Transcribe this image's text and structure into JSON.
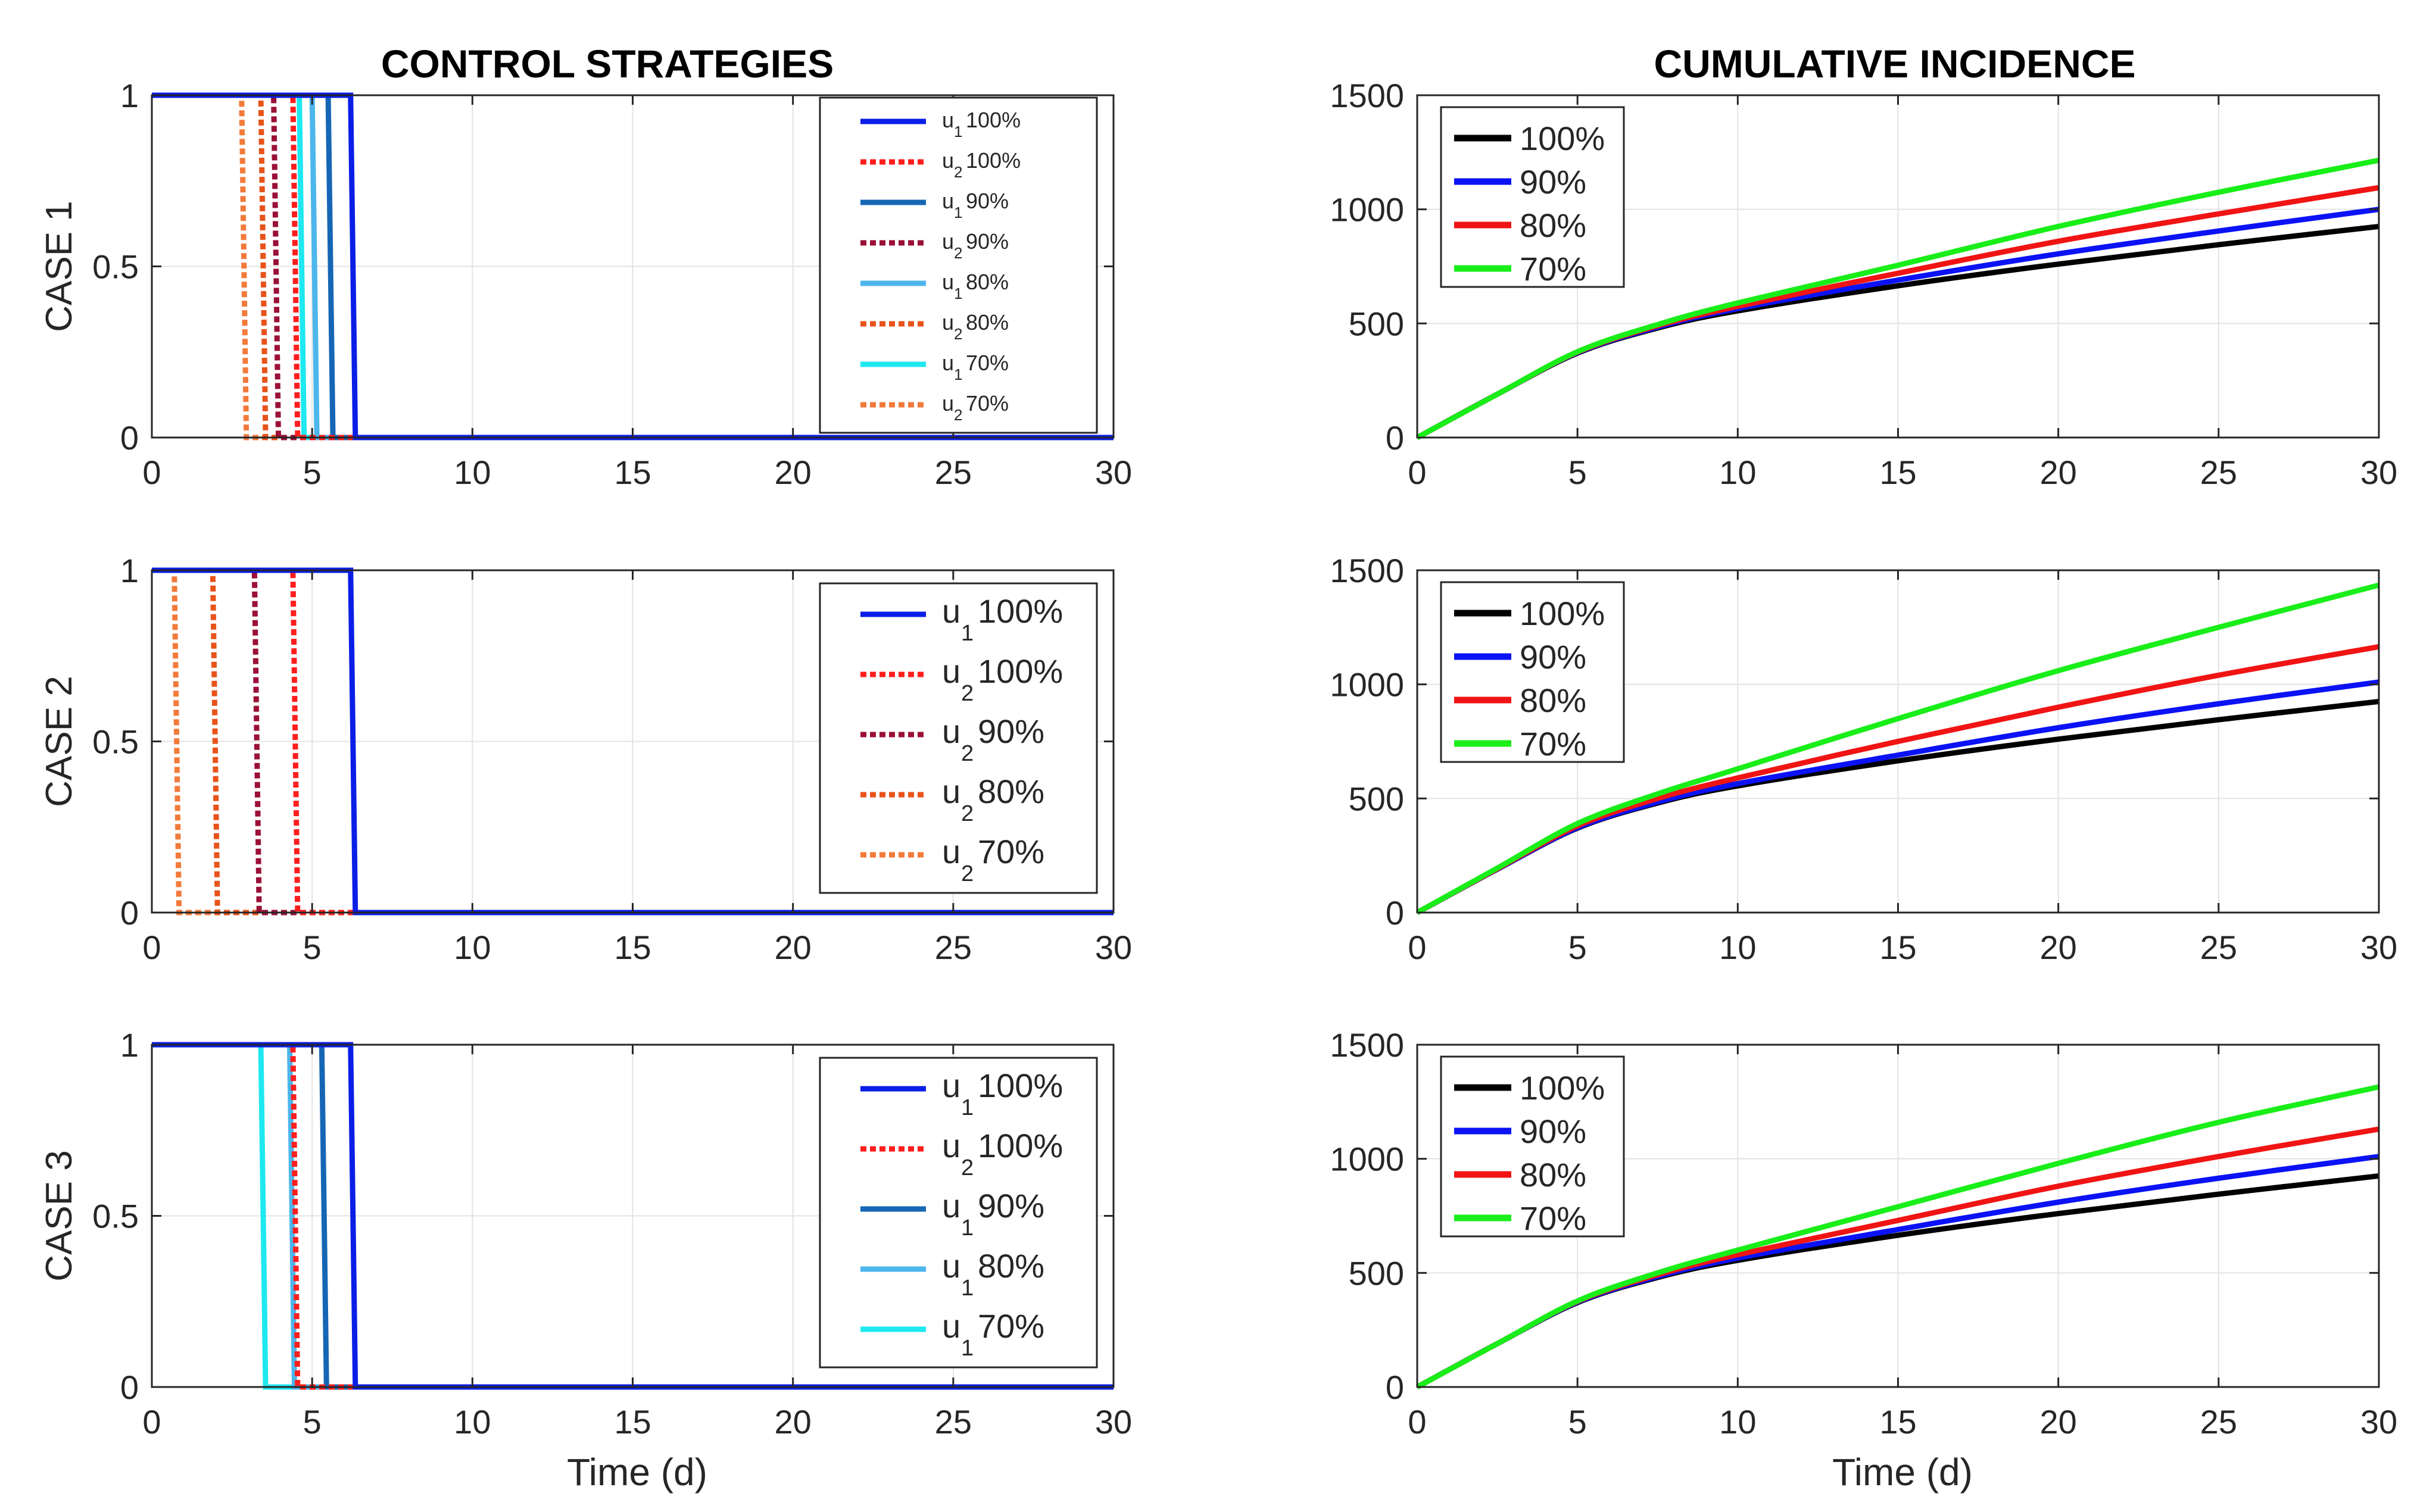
{
  "figure": {
    "left_title": "CONTROL STRATEGIES",
    "right_title": "CUMULATIVE INCIDENCE",
    "xlabel": "Time (d)"
  },
  "chart_data": [
    {
      "type": "line",
      "title": "",
      "ylabel": "CASE 1",
      "xlim": [
        0,
        30
      ],
      "ylim": [
        0,
        1
      ],
      "xticks": [
        0,
        5,
        10,
        15,
        20,
        25,
        30
      ],
      "yticks": [
        0,
        0.5,
        1
      ],
      "grid": true,
      "legend_size": "small",
      "series": [
        {
          "sym": "u",
          "sub": "1",
          "pct": "100%",
          "color": "#0a1ee6",
          "dash": false,
          "switch": 6.2
        },
        {
          "sym": "u",
          "sub": "2",
          "pct": "100%",
          "color": "#ff1e1e",
          "dash": true,
          "switch": 4.4
        },
        {
          "sym": "u",
          "sub": "1",
          "pct": "90%",
          "color": "#1666b5",
          "dash": false,
          "switch": 5.5
        },
        {
          "sym": "u",
          "sub": "2",
          "pct": "90%",
          "color": "#9a1036",
          "dash": true,
          "switch": 3.8
        },
        {
          "sym": "u",
          "sub": "1",
          "pct": "80%",
          "color": "#4db6ec",
          "dash": false,
          "switch": 5.0
        },
        {
          "sym": "u",
          "sub": "2",
          "pct": "80%",
          "color": "#e8531a",
          "dash": true,
          "switch": 3.4
        },
        {
          "sym": "u",
          "sub": "1",
          "pct": "70%",
          "color": "#1ee8f0",
          "dash": false,
          "switch": 4.6
        },
        {
          "sym": "u",
          "sub": "2",
          "pct": "70%",
          "color": "#f27a3a",
          "dash": true,
          "switch": 2.8
        }
      ]
    },
    {
      "type": "line",
      "title": "",
      "ylabel": "",
      "xlim": [
        0,
        30
      ],
      "ylim": [
        0,
        1500
      ],
      "xticks": [
        0,
        5,
        10,
        15,
        20,
        25,
        30
      ],
      "yticks": [
        0,
        500,
        1000,
        1500
      ],
      "grid": true,
      "series": [
        {
          "name": "100%",
          "color": "#000000",
          "x": [
            0,
            2.5,
            5,
            7.5,
            10,
            15,
            20,
            25,
            30
          ],
          "y": [
            0,
            190,
            370,
            480,
            555,
            665,
            760,
            845,
            925
          ]
        },
        {
          "name": "90%",
          "color": "#0b12f5",
          "x": [
            0,
            2.5,
            5,
            7.5,
            10,
            15,
            20,
            25,
            30
          ],
          "y": [
            0,
            190,
            372,
            484,
            565,
            690,
            805,
            905,
            1000
          ]
        },
        {
          "name": "80%",
          "color": "#f01414",
          "x": [
            0,
            2.5,
            5,
            7.5,
            10,
            15,
            20,
            25,
            30
          ],
          "y": [
            0,
            190,
            374,
            490,
            575,
            720,
            860,
            980,
            1095
          ]
        },
        {
          "name": "70%",
          "color": "#19ee19",
          "x": [
            0,
            2.5,
            5,
            7.5,
            10,
            15,
            20,
            25,
            30
          ],
          "y": [
            0,
            190,
            376,
            495,
            590,
            755,
            925,
            1075,
            1215
          ]
        }
      ]
    },
    {
      "type": "line",
      "title": "",
      "ylabel": "CASE 2",
      "xlim": [
        0,
        30
      ],
      "ylim": [
        0,
        1
      ],
      "xticks": [
        0,
        5,
        10,
        15,
        20,
        25,
        30
      ],
      "yticks": [
        0,
        0.5,
        1
      ],
      "grid": true,
      "legend_size": "large",
      "series": [
        {
          "sym": "u",
          "sub": "1",
          "pct": "100%",
          "color": "#0a1ee6",
          "dash": false,
          "switch": 6.2
        },
        {
          "sym": "u",
          "sub": "2",
          "pct": "100%",
          "color": "#ff1e1e",
          "dash": true,
          "switch": 4.4
        },
        {
          "sym": "u",
          "sub": "2",
          "pct": "90%",
          "color": "#9a1036",
          "dash": true,
          "switch": 3.2
        },
        {
          "sym": "u",
          "sub": "2",
          "pct": "80%",
          "color": "#e8531a",
          "dash": true,
          "switch": 1.9
        },
        {
          "sym": "u",
          "sub": "2",
          "pct": "70%",
          "color": "#f27a3a",
          "dash": true,
          "switch": 0.7
        }
      ]
    },
    {
      "type": "line",
      "title": "",
      "ylabel": "",
      "xlim": [
        0,
        30
      ],
      "ylim": [
        0,
        1500
      ],
      "xticks": [
        0,
        5,
        10,
        15,
        20,
        25,
        30
      ],
      "yticks": [
        0,
        500,
        1000,
        1500
      ],
      "grid": true,
      "series": [
        {
          "name": "100%",
          "color": "#000000",
          "x": [
            0,
            2.5,
            5,
            7.5,
            10,
            15,
            20,
            25,
            30
          ],
          "y": [
            0,
            190,
            370,
            480,
            555,
            665,
            760,
            845,
            925
          ]
        },
        {
          "name": "90%",
          "color": "#0b12f5",
          "x": [
            0,
            2.5,
            5,
            7.5,
            10,
            15,
            20,
            25,
            30
          ],
          "y": [
            0,
            190,
            372,
            484,
            565,
            690,
            810,
            915,
            1010
          ]
        },
        {
          "name": "80%",
          "color": "#f01414",
          "x": [
            0,
            2.5,
            5,
            7.5,
            10,
            15,
            20,
            25,
            30
          ],
          "y": [
            0,
            192,
            380,
            500,
            590,
            750,
            900,
            1040,
            1165
          ]
        },
        {
          "name": "70%",
          "color": "#19ee19",
          "x": [
            0,
            2.5,
            5,
            7.5,
            10,
            15,
            20,
            25,
            30
          ],
          "y": [
            0,
            195,
            390,
            520,
            630,
            850,
            1060,
            1250,
            1435
          ]
        }
      ]
    },
    {
      "type": "line",
      "title": "",
      "ylabel": "CASE 3",
      "xlim": [
        0,
        30
      ],
      "ylim": [
        0,
        1
      ],
      "xticks": [
        0,
        5,
        10,
        15,
        20,
        25,
        30
      ],
      "yticks": [
        0,
        0.5,
        1
      ],
      "grid": true,
      "legend_size": "large",
      "series": [
        {
          "sym": "u",
          "sub": "1",
          "pct": "100%",
          "color": "#0a1ee6",
          "dash": false,
          "switch": 6.2
        },
        {
          "sym": "u",
          "sub": "2",
          "pct": "100%",
          "color": "#ff1e1e",
          "dash": true,
          "switch": 4.4
        },
        {
          "sym": "u",
          "sub": "1",
          "pct": "90%",
          "color": "#1666b5",
          "dash": false,
          "switch": 5.3
        },
        {
          "sym": "u",
          "sub": "1",
          "pct": "80%",
          "color": "#4db6ec",
          "dash": false,
          "switch": 4.3
        },
        {
          "sym": "u",
          "sub": "1",
          "pct": "70%",
          "color": "#1ee8f0",
          "dash": false,
          "switch": 3.4
        }
      ]
    },
    {
      "type": "line",
      "title": "",
      "ylabel": "",
      "xlim": [
        0,
        30
      ],
      "ylim": [
        0,
        1500
      ],
      "xticks": [
        0,
        5,
        10,
        15,
        20,
        25,
        30
      ],
      "yticks": [
        0,
        500,
        1000,
        1500
      ],
      "grid": true,
      "series": [
        {
          "name": "100%",
          "color": "#000000",
          "x": [
            0,
            2.5,
            5,
            7.5,
            10,
            15,
            20,
            25,
            30
          ],
          "y": [
            0,
            190,
            370,
            480,
            555,
            665,
            760,
            845,
            925
          ]
        },
        {
          "name": "90%",
          "color": "#0b12f5",
          "x": [
            0,
            2.5,
            5,
            7.5,
            10,
            15,
            20,
            25,
            30
          ],
          "y": [
            0,
            190,
            372,
            484,
            565,
            690,
            810,
            915,
            1010
          ]
        },
        {
          "name": "80%",
          "color": "#f01414",
          "x": [
            0,
            2.5,
            5,
            7.5,
            10,
            15,
            20,
            25,
            30
          ],
          "y": [
            0,
            190,
            375,
            492,
            580,
            730,
            880,
            1010,
            1130
          ]
        },
        {
          "name": "70%",
          "color": "#19ee19",
          "x": [
            0,
            2.5,
            5,
            7.5,
            10,
            15,
            20,
            25,
            30
          ],
          "y": [
            0,
            190,
            377,
            500,
            600,
            790,
            980,
            1160,
            1315
          ]
        }
      ]
    }
  ]
}
